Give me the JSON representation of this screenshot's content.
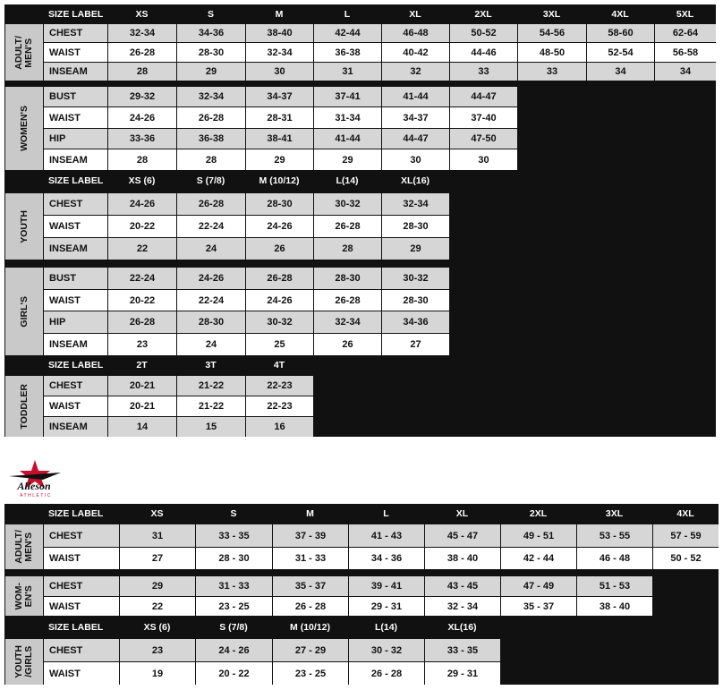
{
  "tables": [
    {
      "sections": [
        {
          "label": [
            "ADULT/",
            "MEN'S"
          ],
          "header": [
            "SIZE LABEL",
            "XS",
            "S",
            "M",
            "L",
            "XL",
            "2XL",
            "3XL",
            "4XL",
            "5XL"
          ],
          "rows": [
            {
              "label": "CHEST",
              "values": [
                "32-34",
                "34-36",
                "38-40",
                "42-44",
                "46-48",
                "50-52",
                "54-56",
                "58-60",
                "62-64"
              ]
            },
            {
              "label": "WAIST",
              "values": [
                "26-28",
                "28-30",
                "32-34",
                "36-38",
                "40-42",
                "44-46",
                "48-50",
                "52-54",
                "56-58"
              ]
            },
            {
              "label": "INSEAM",
              "values": [
                "28",
                "29",
                "30",
                "31",
                "32",
                "33",
                "33",
                "34",
                "34"
              ]
            }
          ]
        },
        {
          "label": [
            "WOMEN'S"
          ],
          "rows": [
            {
              "label": "BUST",
              "values": [
                "29-32",
                "32-34",
                "34-37",
                "37-41",
                "41-44",
                "44-47"
              ]
            },
            {
              "label": "WAIST",
              "values": [
                "24-26",
                "26-28",
                "28-31",
                "31-34",
                "34-37",
                "37-40"
              ]
            },
            {
              "label": "HIP",
              "values": [
                "33-36",
                "36-38",
                "38-41",
                "41-44",
                "44-47",
                "47-50"
              ]
            },
            {
              "label": "INSEAM",
              "values": [
                "28",
                "28",
                "29",
                "29",
                "30",
                "30"
              ]
            }
          ]
        },
        {
          "label": [
            "YOUTH"
          ],
          "header": [
            "SIZE LABEL",
            "XS (6)",
            "S (7/8)",
            "M (10/12)",
            "L(14)",
            "XL(16)"
          ],
          "rows": [
            {
              "label": "CHEST",
              "values": [
                "24-26",
                "26-28",
                "28-30",
                "30-32",
                "32-34"
              ]
            },
            {
              "label": "WAIST",
              "values": [
                "20-22",
                "22-24",
                "24-26",
                "26-28",
                "28-30"
              ]
            },
            {
              "label": "INSEAM",
              "values": [
                "22",
                "24",
                "26",
                "28",
                "29"
              ]
            }
          ]
        },
        {
          "label": [
            "GIRL'S"
          ],
          "rows": [
            {
              "label": "BUST",
              "values": [
                "22-24",
                "24-26",
                "26-28",
                "28-30",
                "30-32"
              ]
            },
            {
              "label": "WAIST",
              "values": [
                "20-22",
                "22-24",
                "24-26",
                "26-28",
                "28-30"
              ]
            },
            {
              "label": "HIP",
              "values": [
                "26-28",
                "28-30",
                "30-32",
                "32-34",
                "34-36"
              ]
            },
            {
              "label": "INSEAM",
              "values": [
                "23",
                "24",
                "25",
                "26",
                "27"
              ]
            }
          ]
        },
        {
          "label": [
            "TODDLER"
          ],
          "header": [
            "SIZE LABEL",
            "2T",
            "3T",
            "4T"
          ],
          "rows": [
            {
              "label": "CHEST",
              "values": [
                "20-21",
                "21-22",
                "22-23"
              ]
            },
            {
              "label": "WAIST",
              "values": [
                "20-21",
                "21-22",
                "22-23"
              ]
            },
            {
              "label": "INSEAM",
              "values": [
                "14",
                "15",
                "16"
              ]
            }
          ]
        }
      ]
    },
    {
      "sections": [
        {
          "label": [
            "ADULT/",
            "MEN'S"
          ],
          "header": [
            "SIZE LABEL",
            "XS",
            "S",
            "M",
            "L",
            "XL",
            "2XL",
            "3XL",
            "4XL"
          ],
          "rows": [
            {
              "label": "CHEST",
              "values": [
                "31",
                "33 - 35",
                "37 - 39",
                "41 - 43",
                "45 - 47",
                "49 - 51",
                "53 - 55",
                "57 - 59"
              ]
            },
            {
              "label": "WAIST",
              "values": [
                "27",
                "28 - 30",
                "31 - 33",
                "34 - 36",
                "38 - 40",
                "42 - 44",
                "46 - 48",
                "50 - 52"
              ]
            }
          ]
        },
        {
          "label": [
            "WOM-",
            "EN'S"
          ],
          "rows": [
            {
              "label": "CHEST",
              "values": [
                "29",
                "31 - 33",
                "35 - 37",
                "39 - 41",
                "43 - 45",
                "47 - 49",
                "51 - 53"
              ]
            },
            {
              "label": "WAIST",
              "values": [
                "22",
                "23 - 25",
                "26 - 28",
                "29 - 31",
                "32 - 34",
                "35 - 37",
                "38 - 40"
              ]
            }
          ]
        },
        {
          "label": [
            "YOUTH",
            "/GIRLS"
          ],
          "header": [
            "SIZE LABEL",
            "XS (6)",
            "S (7/8)",
            "M (10/12)",
            "L(14)",
            "XL(16)"
          ],
          "rows": [
            {
              "label": "CHEST",
              "values": [
                "23",
                "24 - 26",
                "27 - 29",
                "30 - 32",
                "33 - 35"
              ]
            },
            {
              "label": "WAIST",
              "values": [
                "19",
                "20 - 22",
                "23 - 25",
                "26 - 28",
                "29 - 31"
              ]
            }
          ]
        }
      ]
    }
  ],
  "logo": {
    "name": "Alleson",
    "tagline": "ATHLETIC"
  }
}
